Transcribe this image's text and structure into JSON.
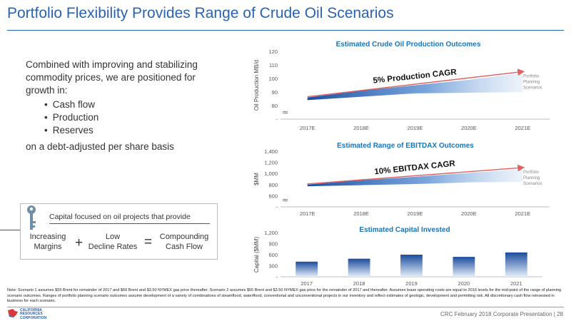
{
  "slide": {
    "title": "Portfolio Flexibility Provides Range of Crude Oil Scenarios",
    "intro": "Combined with improving and stabilizing commodity prices, we are positioned for growth in:",
    "bullets": [
      "Cash flow",
      "Production",
      "Reserves"
    ],
    "closing": "on a debt-adjusted per share basis",
    "capital_box": {
      "title": "Capital focused on oil projects that provide",
      "term1": "Increasing\nMargins",
      "op1": "+",
      "term2": "Low\nDecline Rates",
      "op2": "=",
      "term3": "Compounding\nCash Flow"
    },
    "footnote": "Note: Scenario 1 assumes $55 Brent for remainder of 2017 and $60 Brent and $3.50 NYMEX gas price thereafter. Scenario 2 assumes $55 Brent and $3.50 NYMEX gas price for the remainder of 2017 and thereafter. Assumes lease operating costs are equal to 2016 levels for the mid-point of the range of planning scenario outcomes. Ranges of portfolio planning scenario outcomes assume development of a variety of combinations of steamflood, waterflood, conventional and unconventional projects in our inventory and reflect estimates of geologic, development and permitting risk. All discretionary cash flow reinvested in business for each scenario.",
    "footer": "CRC February 2018 Corporate Presentation | 28",
    "logo_text": "CALIFORNIA\nRESOURCES\nCORPORATION",
    "colors": {
      "accent": "#2a62b0",
      "band_dark": "#1c4fa0",
      "arrow": "#e06060",
      "teal_title": "#1a75b8"
    }
  },
  "chart_data": [
    {
      "type": "area",
      "title": "Estimated Crude Oil Production Outcomes",
      "ylabel": "Oil Production MB/d",
      "categories": [
        "2017E",
        "2018E",
        "2019E",
        "2020E",
        "2021E"
      ],
      "yticks": [
        "-",
        "80",
        "90",
        "100",
        "110",
        "120"
      ],
      "ylim": [
        70,
        120
      ],
      "series": [
        {
          "values_low": [
            84,
            86.5,
            89,
            89.5,
            90
          ]
        },
        {
          "values_high": [
            86,
            91,
            95,
            99,
            104
          ]
        }
      ],
      "annotation": "5% Production CAGR",
      "side_label": "Portfolio\nPlanning\nScenarios"
    },
    {
      "type": "area",
      "title": "Estimated Range of EBITDAX Outcomes",
      "ylabel": "$MM",
      "categories": [
        "2017E",
        "2018E",
        "2019E",
        "2020E",
        "2021E"
      ],
      "yticks": [
        "-",
        "600",
        "800",
        "1,000",
        "1,200",
        "1,400"
      ],
      "ylim": [
        400,
        1400
      ],
      "series": [
        {
          "values_low": [
            770,
            790,
            810,
            840,
            850
          ]
        },
        {
          "values_high": [
            800,
            880,
            940,
            1010,
            1080
          ]
        }
      ],
      "annotation": "10% EBITDAX CAGR",
      "side_label": "Portfolio\nPlanning\nScenarios"
    },
    {
      "type": "bar",
      "title": "Estimated Capital Invested",
      "ylabel": "Capital ($MM)",
      "categories": [
        "2017",
        "2018",
        "2019",
        "2020",
        "2021"
      ],
      "yticks": [
        "-",
        "300",
        "600",
        "900",
        "1,200"
      ],
      "ylim": [
        0,
        1200
      ],
      "values": [
        410,
        490,
        600,
        540,
        660
      ]
    }
  ]
}
